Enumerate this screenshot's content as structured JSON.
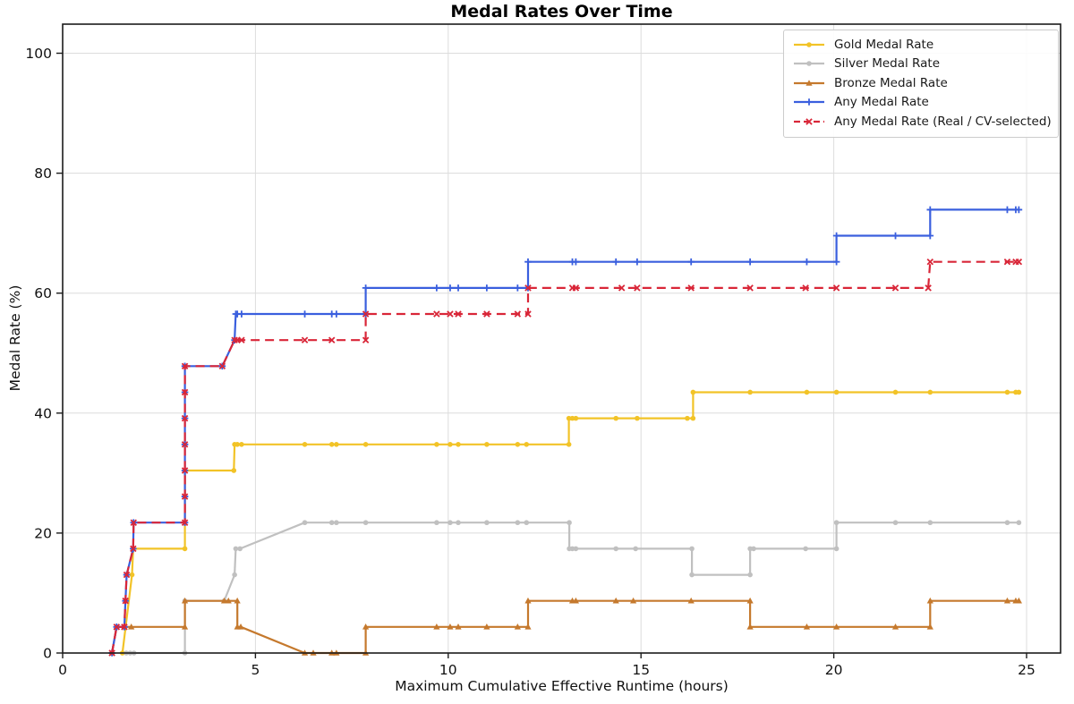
{
  "chart_data": {
    "type": "line",
    "title": "Medal Rates Over Time",
    "xlabel": "Maximum Cumulative Effective Runtime (hours)",
    "ylabel": "Medal Rate (%)",
    "xlim": [
      0,
      25.9
    ],
    "ylim": [
      0,
      104.8
    ],
    "xticks": [
      0,
      5,
      10,
      15,
      20,
      25
    ],
    "yticks": [
      0,
      20,
      40,
      60,
      80,
      100
    ],
    "grid": true,
    "legend_position": "upper right",
    "colors": {
      "grid": "#dcdcdc",
      "spine": "#1c1c1c",
      "tick_label": "#111111"
    },
    "series": [
      {
        "name": "Gold Medal Rate",
        "color": "#F2C327",
        "marker": "circle",
        "dash": "solid",
        "points": [
          [
            1.55,
            0
          ],
          [
            1.8,
            13.04
          ],
          [
            1.83,
            17.39
          ],
          [
            3.17,
            17.39
          ],
          [
            3.17,
            30.43
          ],
          [
            4.44,
            30.43
          ],
          [
            4.46,
            34.78
          ],
          [
            4.53,
            34.78
          ],
          [
            4.64,
            34.78
          ],
          [
            6.28,
            34.78
          ],
          [
            6.98,
            34.78
          ],
          [
            7.1,
            34.78
          ],
          [
            7.86,
            34.78
          ],
          [
            9.7,
            34.78
          ],
          [
            10.05,
            34.78
          ],
          [
            10.26,
            34.78
          ],
          [
            11.0,
            34.78
          ],
          [
            11.8,
            34.78
          ],
          [
            12.03,
            34.78
          ],
          [
            13.13,
            34.78
          ],
          [
            13.13,
            39.13
          ],
          [
            13.22,
            39.13
          ],
          [
            13.31,
            39.13
          ],
          [
            14.35,
            39.13
          ],
          [
            14.9,
            39.13
          ],
          [
            16.2,
            39.13
          ],
          [
            16.35,
            39.13
          ],
          [
            16.35,
            43.48
          ],
          [
            17.83,
            43.48
          ],
          [
            19.3,
            43.48
          ],
          [
            20.07,
            43.48
          ],
          [
            21.6,
            43.48
          ],
          [
            22.5,
            43.48
          ],
          [
            24.5,
            43.48
          ],
          [
            24.72,
            43.48
          ],
          [
            24.8,
            43.48
          ]
        ]
      },
      {
        "name": "Silver Medal Rate",
        "color": "#C0C0C0",
        "marker": "circle",
        "dash": "solid",
        "points": [
          [
            1.65,
            0
          ],
          [
            1.75,
            0
          ],
          [
            1.85,
            0
          ],
          [
            3.17,
            0
          ],
          [
            3.17,
            8.7
          ],
          [
            4.19,
            8.7
          ],
          [
            4.46,
            13.04
          ],
          [
            4.49,
            17.39
          ],
          [
            4.6,
            17.39
          ],
          [
            6.28,
            21.74
          ],
          [
            6.98,
            21.74
          ],
          [
            7.1,
            21.74
          ],
          [
            7.86,
            21.74
          ],
          [
            9.7,
            21.74
          ],
          [
            10.05,
            21.74
          ],
          [
            10.26,
            21.74
          ],
          [
            11.0,
            21.74
          ],
          [
            11.8,
            21.74
          ],
          [
            12.03,
            21.74
          ],
          [
            13.14,
            21.74
          ],
          [
            13.14,
            17.39
          ],
          [
            13.22,
            17.39
          ],
          [
            13.31,
            17.39
          ],
          [
            14.35,
            17.39
          ],
          [
            14.86,
            17.39
          ],
          [
            16.32,
            17.39
          ],
          [
            16.32,
            13.04
          ],
          [
            17.83,
            13.04
          ],
          [
            17.83,
            17.39
          ],
          [
            17.92,
            17.39
          ],
          [
            19.27,
            17.39
          ],
          [
            20.07,
            17.39
          ],
          [
            20.07,
            21.74
          ],
          [
            21.6,
            21.74
          ],
          [
            22.5,
            21.74
          ],
          [
            24.5,
            21.74
          ],
          [
            24.8,
            21.74
          ]
        ]
      },
      {
        "name": "Bronze Medal Rate",
        "color": "#C5792D",
        "marker": "triangle",
        "dash": "solid",
        "points": [
          [
            1.28,
            0
          ],
          [
            1.4,
            4.35
          ],
          [
            1.6,
            4.35
          ],
          [
            1.78,
            4.35
          ],
          [
            3.17,
            4.35
          ],
          [
            3.17,
            8.7
          ],
          [
            4.19,
            8.7
          ],
          [
            4.3,
            8.7
          ],
          [
            4.53,
            8.7
          ],
          [
            4.53,
            4.35
          ],
          [
            4.62,
            4.35
          ],
          [
            6.28,
            0
          ],
          [
            6.5,
            0
          ],
          [
            6.98,
            0
          ],
          [
            7.1,
            0
          ],
          [
            7.86,
            0
          ],
          [
            7.86,
            4.35
          ],
          [
            9.7,
            4.35
          ],
          [
            10.05,
            4.35
          ],
          [
            10.26,
            4.35
          ],
          [
            11.0,
            4.35
          ],
          [
            11.8,
            4.35
          ],
          [
            12.07,
            4.35
          ],
          [
            12.07,
            8.7
          ],
          [
            13.22,
            8.7
          ],
          [
            13.31,
            8.7
          ],
          [
            14.35,
            8.7
          ],
          [
            14.8,
            8.7
          ],
          [
            16.3,
            8.7
          ],
          [
            17.83,
            8.7
          ],
          [
            17.83,
            4.35
          ],
          [
            19.3,
            4.35
          ],
          [
            20.07,
            4.35
          ],
          [
            21.6,
            4.35
          ],
          [
            22.5,
            4.35
          ],
          [
            22.5,
            8.7
          ],
          [
            24.5,
            8.7
          ],
          [
            24.72,
            8.7
          ],
          [
            24.8,
            8.7
          ]
        ]
      },
      {
        "name": "Any Medal Rate",
        "color": "#3A5FDE",
        "marker": "plus",
        "dash": "solid",
        "points": [
          [
            1.28,
            0
          ],
          [
            1.4,
            4.35
          ],
          [
            1.6,
            4.35
          ],
          [
            1.63,
            8.7
          ],
          [
            1.66,
            13.04
          ],
          [
            1.83,
            17.39
          ],
          [
            1.84,
            21.74
          ],
          [
            3.17,
            21.74
          ],
          [
            3.17,
            26.09
          ],
          [
            3.17,
            30.43
          ],
          [
            3.17,
            34.78
          ],
          [
            3.17,
            39.13
          ],
          [
            3.17,
            43.48
          ],
          [
            3.17,
            47.83
          ],
          [
            4.14,
            47.83
          ],
          [
            4.46,
            52.17
          ],
          [
            4.49,
            56.52
          ],
          [
            4.53,
            56.52
          ],
          [
            4.64,
            56.52
          ],
          [
            6.28,
            56.52
          ],
          [
            6.98,
            56.52
          ],
          [
            7.1,
            56.52
          ],
          [
            7.86,
            56.52
          ],
          [
            7.86,
            60.87
          ],
          [
            9.7,
            60.87
          ],
          [
            10.05,
            60.87
          ],
          [
            10.26,
            60.87
          ],
          [
            11.0,
            60.87
          ],
          [
            11.8,
            60.87
          ],
          [
            12.07,
            60.87
          ],
          [
            12.07,
            65.22
          ],
          [
            13.22,
            65.22
          ],
          [
            13.31,
            65.22
          ],
          [
            14.35,
            65.22
          ],
          [
            14.9,
            65.22
          ],
          [
            16.3,
            65.22
          ],
          [
            17.83,
            65.22
          ],
          [
            19.3,
            65.22
          ],
          [
            20.07,
            65.22
          ],
          [
            20.07,
            69.57
          ],
          [
            21.6,
            69.57
          ],
          [
            22.5,
            69.57
          ],
          [
            22.5,
            73.91
          ],
          [
            24.5,
            73.91
          ],
          [
            24.72,
            73.91
          ],
          [
            24.8,
            73.91
          ]
        ]
      },
      {
        "name": "Any Medal Rate (Real / CV-selected)",
        "color": "#D92638",
        "marker": "x",
        "dash": "dashed",
        "points": [
          [
            1.28,
            0
          ],
          [
            1.4,
            4.35
          ],
          [
            1.6,
            4.35
          ],
          [
            1.63,
            8.7
          ],
          [
            1.66,
            13.04
          ],
          [
            1.83,
            17.39
          ],
          [
            1.84,
            21.74
          ],
          [
            3.17,
            21.74
          ],
          [
            3.17,
            26.09
          ],
          [
            3.17,
            30.43
          ],
          [
            3.17,
            34.78
          ],
          [
            3.17,
            39.13
          ],
          [
            3.17,
            43.48
          ],
          [
            3.17,
            47.83
          ],
          [
            4.14,
            47.83
          ],
          [
            4.46,
            52.17
          ],
          [
            4.53,
            52.17
          ],
          [
            4.64,
            52.17
          ],
          [
            6.28,
            52.17
          ],
          [
            6.98,
            52.17
          ],
          [
            7.86,
            52.17
          ],
          [
            7.86,
            56.52
          ],
          [
            9.7,
            56.52
          ],
          [
            10.05,
            56.52
          ],
          [
            10.26,
            56.52
          ],
          [
            11.0,
            56.52
          ],
          [
            11.8,
            56.52
          ],
          [
            12.07,
            56.52
          ],
          [
            12.07,
            60.87
          ],
          [
            13.22,
            60.87
          ],
          [
            13.31,
            60.87
          ],
          [
            14.5,
            60.87
          ],
          [
            14.9,
            60.87
          ],
          [
            16.3,
            60.87
          ],
          [
            17.83,
            60.87
          ],
          [
            19.27,
            60.87
          ],
          [
            20.07,
            60.87
          ],
          [
            21.6,
            60.87
          ],
          [
            22.45,
            60.87
          ],
          [
            22.5,
            65.22
          ],
          [
            24.5,
            65.22
          ],
          [
            24.72,
            65.22
          ],
          [
            24.8,
            65.22
          ]
        ]
      }
    ]
  }
}
